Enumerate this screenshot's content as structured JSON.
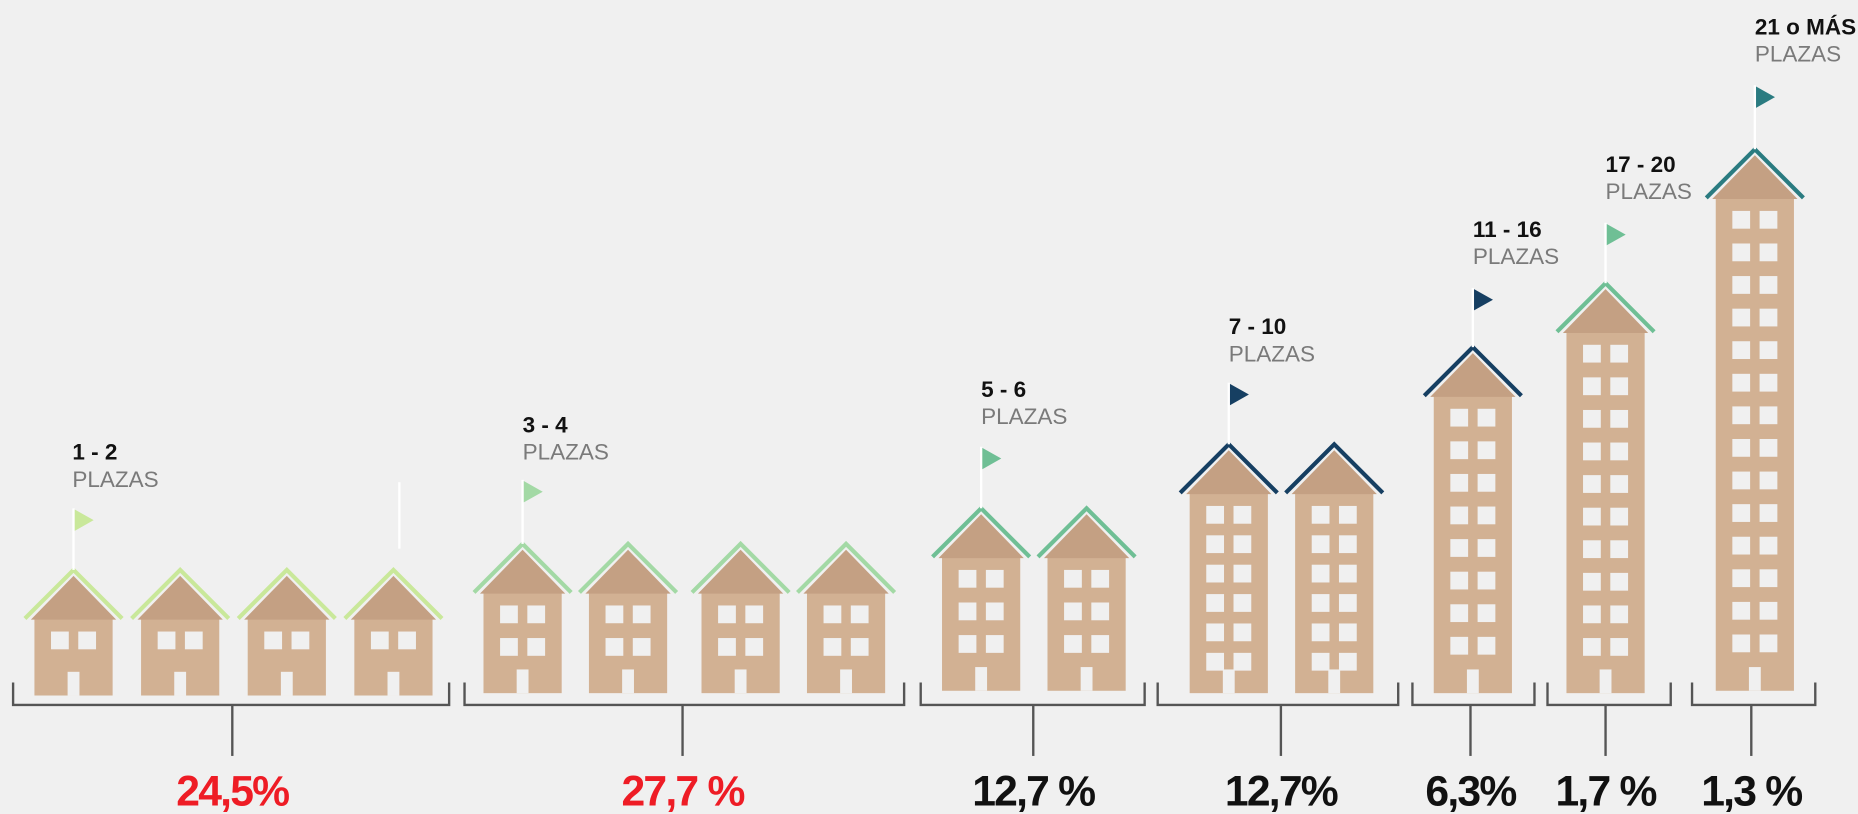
{
  "groups": [
    {
      "range": "1 - 2",
      "unit": "PLAZAS",
      "share": "24,5%"
    },
    {
      "range": "3 - 4",
      "unit": "PLAZAS",
      "share": "27,7 %"
    },
    {
      "range": "5 - 6",
      "unit": "PLAZAS",
      "share": "12,7 %"
    },
    {
      "range": "7 - 10",
      "unit": "PLAZAS",
      "share": "12,7%"
    },
    {
      "range": "11 - 16",
      "unit": "PLAZAS",
      "share": "6,3%"
    },
    {
      "range": "17 - 20",
      "unit": "PLAZAS",
      "share": "1,7 %"
    },
    {
      "range": "21 o MÁS",
      "unit": "PLAZAS",
      "share": "1,3 %"
    }
  ]
}
